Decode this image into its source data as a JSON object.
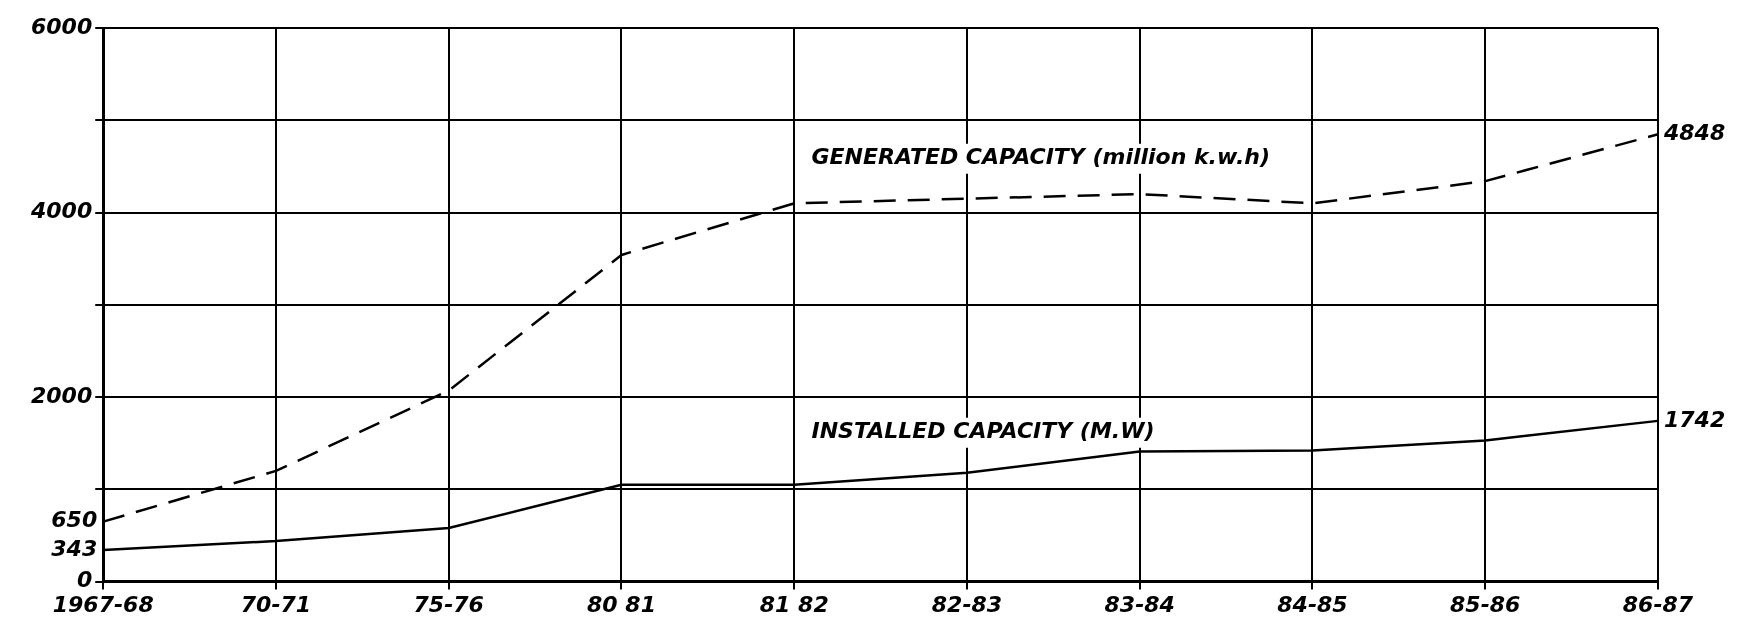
{
  "chart_data": {
    "type": "line",
    "categories": [
      "1967-68",
      "70-71",
      "75-76",
      "80 81",
      "81 82",
      "82-83",
      "83-84",
      "84-85",
      "85-86",
      "86-87"
    ],
    "series": [
      {
        "name": "GENERATED CAPACITY (million k.w.h)",
        "color": "#000000",
        "line_style": "dashed",
        "values": [
          650,
          1200,
          2070,
          3540,
          4100,
          4150,
          4200,
          4100,
          4340,
          4848
        ],
        "value_labels": [
          "650",
          null,
          null,
          null,
          null,
          null,
          null,
          null,
          null,
          "4848"
        ]
      },
      {
        "name": "INSTALLED CAPACITY (M.W)",
        "color": "#000000",
        "line_style": "solid",
        "values": [
          343,
          440,
          580,
          1050,
          1050,
          1180,
          1410,
          1420,
          1530,
          1742
        ],
        "value_labels": [
          "343",
          null,
          null,
          null,
          null,
          null,
          null,
          null,
          null,
          "1742"
        ]
      }
    ],
    "ylim": [
      0,
      6000
    ],
    "yticks": [
      0,
      {
        "value": 1000,
        "label": null
      },
      2000,
      {
        "value": 3000,
        "label": null
      },
      4000,
      {
        "value": 5000,
        "label": null
      },
      6000
    ],
    "grid": true,
    "legend": false,
    "marker": "none"
  }
}
